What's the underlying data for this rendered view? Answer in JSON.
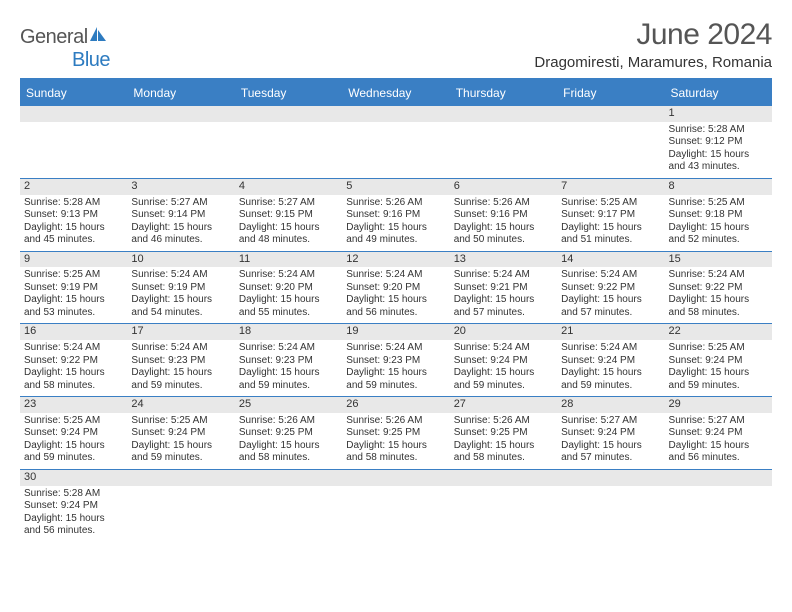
{
  "logo": {
    "text_left": "General",
    "text_right": "Blue"
  },
  "title": "June 2024",
  "location": "Dragomiresti, Maramures, Romania",
  "colors": {
    "header_bg": "#3a7fc4",
    "header_text": "#ffffff",
    "daynum_bg": "#e8e8e8",
    "text": "#333333",
    "logo_gray": "#555555",
    "logo_blue": "#2d7bc0",
    "border": "#3a7fc4"
  },
  "day_headers": [
    "Sunday",
    "Monday",
    "Tuesday",
    "Wednesday",
    "Thursday",
    "Friday",
    "Saturday"
  ],
  "weeks": [
    [
      {
        "num": "",
        "sunrise": "",
        "sunset": "",
        "daylight": ""
      },
      {
        "num": "",
        "sunrise": "",
        "sunset": "",
        "daylight": ""
      },
      {
        "num": "",
        "sunrise": "",
        "sunset": "",
        "daylight": ""
      },
      {
        "num": "",
        "sunrise": "",
        "sunset": "",
        "daylight": ""
      },
      {
        "num": "",
        "sunrise": "",
        "sunset": "",
        "daylight": ""
      },
      {
        "num": "",
        "sunrise": "",
        "sunset": "",
        "daylight": ""
      },
      {
        "num": "1",
        "sunrise": "Sunrise: 5:28 AM",
        "sunset": "Sunset: 9:12 PM",
        "daylight": "Daylight: 15 hours and 43 minutes."
      }
    ],
    [
      {
        "num": "2",
        "sunrise": "Sunrise: 5:28 AM",
        "sunset": "Sunset: 9:13 PM",
        "daylight": "Daylight: 15 hours and 45 minutes."
      },
      {
        "num": "3",
        "sunrise": "Sunrise: 5:27 AM",
        "sunset": "Sunset: 9:14 PM",
        "daylight": "Daylight: 15 hours and 46 minutes."
      },
      {
        "num": "4",
        "sunrise": "Sunrise: 5:27 AM",
        "sunset": "Sunset: 9:15 PM",
        "daylight": "Daylight: 15 hours and 48 minutes."
      },
      {
        "num": "5",
        "sunrise": "Sunrise: 5:26 AM",
        "sunset": "Sunset: 9:16 PM",
        "daylight": "Daylight: 15 hours and 49 minutes."
      },
      {
        "num": "6",
        "sunrise": "Sunrise: 5:26 AM",
        "sunset": "Sunset: 9:16 PM",
        "daylight": "Daylight: 15 hours and 50 minutes."
      },
      {
        "num": "7",
        "sunrise": "Sunrise: 5:25 AM",
        "sunset": "Sunset: 9:17 PM",
        "daylight": "Daylight: 15 hours and 51 minutes."
      },
      {
        "num": "8",
        "sunrise": "Sunrise: 5:25 AM",
        "sunset": "Sunset: 9:18 PM",
        "daylight": "Daylight: 15 hours and 52 minutes."
      }
    ],
    [
      {
        "num": "9",
        "sunrise": "Sunrise: 5:25 AM",
        "sunset": "Sunset: 9:19 PM",
        "daylight": "Daylight: 15 hours and 53 minutes."
      },
      {
        "num": "10",
        "sunrise": "Sunrise: 5:24 AM",
        "sunset": "Sunset: 9:19 PM",
        "daylight": "Daylight: 15 hours and 54 minutes."
      },
      {
        "num": "11",
        "sunrise": "Sunrise: 5:24 AM",
        "sunset": "Sunset: 9:20 PM",
        "daylight": "Daylight: 15 hours and 55 minutes."
      },
      {
        "num": "12",
        "sunrise": "Sunrise: 5:24 AM",
        "sunset": "Sunset: 9:20 PM",
        "daylight": "Daylight: 15 hours and 56 minutes."
      },
      {
        "num": "13",
        "sunrise": "Sunrise: 5:24 AM",
        "sunset": "Sunset: 9:21 PM",
        "daylight": "Daylight: 15 hours and 57 minutes."
      },
      {
        "num": "14",
        "sunrise": "Sunrise: 5:24 AM",
        "sunset": "Sunset: 9:22 PM",
        "daylight": "Daylight: 15 hours and 57 minutes."
      },
      {
        "num": "15",
        "sunrise": "Sunrise: 5:24 AM",
        "sunset": "Sunset: 9:22 PM",
        "daylight": "Daylight: 15 hours and 58 minutes."
      }
    ],
    [
      {
        "num": "16",
        "sunrise": "Sunrise: 5:24 AM",
        "sunset": "Sunset: 9:22 PM",
        "daylight": "Daylight: 15 hours and 58 minutes."
      },
      {
        "num": "17",
        "sunrise": "Sunrise: 5:24 AM",
        "sunset": "Sunset: 9:23 PM",
        "daylight": "Daylight: 15 hours and 59 minutes."
      },
      {
        "num": "18",
        "sunrise": "Sunrise: 5:24 AM",
        "sunset": "Sunset: 9:23 PM",
        "daylight": "Daylight: 15 hours and 59 minutes."
      },
      {
        "num": "19",
        "sunrise": "Sunrise: 5:24 AM",
        "sunset": "Sunset: 9:23 PM",
        "daylight": "Daylight: 15 hours and 59 minutes."
      },
      {
        "num": "20",
        "sunrise": "Sunrise: 5:24 AM",
        "sunset": "Sunset: 9:24 PM",
        "daylight": "Daylight: 15 hours and 59 minutes."
      },
      {
        "num": "21",
        "sunrise": "Sunrise: 5:24 AM",
        "sunset": "Sunset: 9:24 PM",
        "daylight": "Daylight: 15 hours and 59 minutes."
      },
      {
        "num": "22",
        "sunrise": "Sunrise: 5:25 AM",
        "sunset": "Sunset: 9:24 PM",
        "daylight": "Daylight: 15 hours and 59 minutes."
      }
    ],
    [
      {
        "num": "23",
        "sunrise": "Sunrise: 5:25 AM",
        "sunset": "Sunset: 9:24 PM",
        "daylight": "Daylight: 15 hours and 59 minutes."
      },
      {
        "num": "24",
        "sunrise": "Sunrise: 5:25 AM",
        "sunset": "Sunset: 9:24 PM",
        "daylight": "Daylight: 15 hours and 59 minutes."
      },
      {
        "num": "25",
        "sunrise": "Sunrise: 5:26 AM",
        "sunset": "Sunset: 9:25 PM",
        "daylight": "Daylight: 15 hours and 58 minutes."
      },
      {
        "num": "26",
        "sunrise": "Sunrise: 5:26 AM",
        "sunset": "Sunset: 9:25 PM",
        "daylight": "Daylight: 15 hours and 58 minutes."
      },
      {
        "num": "27",
        "sunrise": "Sunrise: 5:26 AM",
        "sunset": "Sunset: 9:25 PM",
        "daylight": "Daylight: 15 hours and 58 minutes."
      },
      {
        "num": "28",
        "sunrise": "Sunrise: 5:27 AM",
        "sunset": "Sunset: 9:24 PM",
        "daylight": "Daylight: 15 hours and 57 minutes."
      },
      {
        "num": "29",
        "sunrise": "Sunrise: 5:27 AM",
        "sunset": "Sunset: 9:24 PM",
        "daylight": "Daylight: 15 hours and 56 minutes."
      }
    ],
    [
      {
        "num": "30",
        "sunrise": "Sunrise: 5:28 AM",
        "sunset": "Sunset: 9:24 PM",
        "daylight": "Daylight: 15 hours and 56 minutes."
      },
      {
        "num": "",
        "sunrise": "",
        "sunset": "",
        "daylight": ""
      },
      {
        "num": "",
        "sunrise": "",
        "sunset": "",
        "daylight": ""
      },
      {
        "num": "",
        "sunrise": "",
        "sunset": "",
        "daylight": ""
      },
      {
        "num": "",
        "sunrise": "",
        "sunset": "",
        "daylight": ""
      },
      {
        "num": "",
        "sunrise": "",
        "sunset": "",
        "daylight": ""
      },
      {
        "num": "",
        "sunrise": "",
        "sunset": "",
        "daylight": ""
      }
    ]
  ]
}
